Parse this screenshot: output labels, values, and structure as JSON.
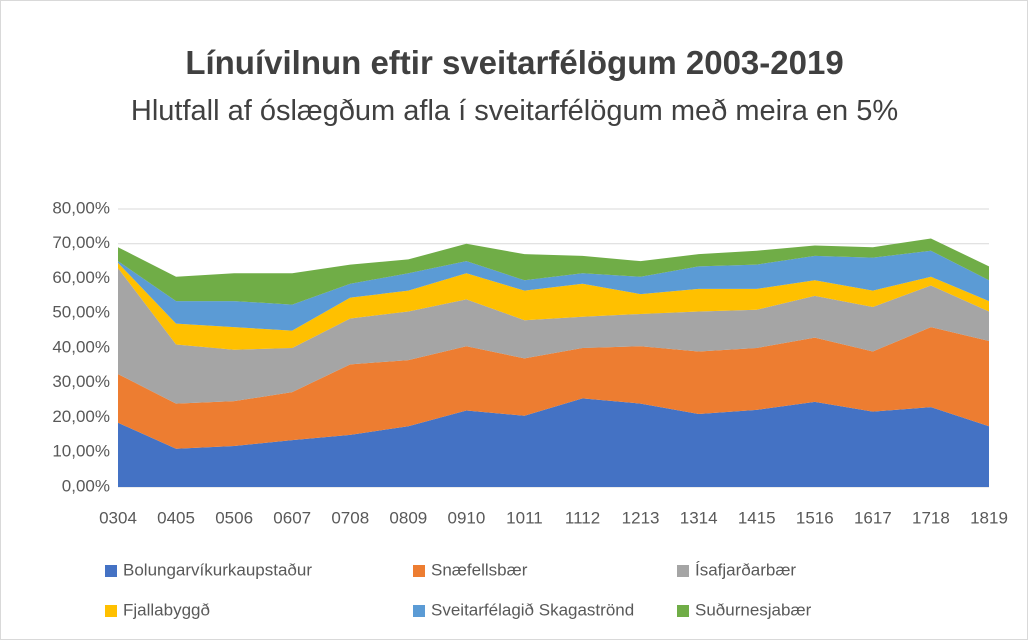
{
  "chart_data": {
    "type": "stacked_area",
    "title": "Línuívilnun eftir sveitarfélögum 2003-2019",
    "subtitle": "Hlutfall af óslægðum afla í sveitarfélögum með meira en 5%",
    "categories": [
      "0304",
      "0405",
      "0506",
      "0607",
      "0708",
      "0809",
      "0910",
      "1011",
      "1112",
      "1213",
      "1314",
      "1415",
      "1516",
      "1617",
      "1718",
      "1819"
    ],
    "series": [
      {
        "name": "Bolungarvíkurkaupstaður",
        "color": "#4472c4",
        "values": [
          18.5,
          11,
          11.8,
          13.5,
          15,
          17.5,
          22,
          20.5,
          25.5,
          24,
          21,
          22.2,
          24.5,
          21.7,
          23,
          17.5
        ]
      },
      {
        "name": "Snæfellsbær",
        "color": "#ed7d31",
        "values": [
          14,
          13,
          12.9,
          13.8,
          20.3,
          19,
          18.5,
          16.5,
          14.5,
          16.5,
          18,
          17.8,
          18.5,
          17.3,
          23,
          24.5
        ]
      },
      {
        "name": "Ísafjarðarbær",
        "color": "#a5a5a5",
        "values": [
          30.5,
          17,
          14.8,
          12.7,
          13.2,
          14,
          13.5,
          11,
          9,
          9.3,
          11.5,
          11,
          12,
          12.8,
          12,
          8.5
        ]
      },
      {
        "name": "Fjallabyggð",
        "color": "#ffc000",
        "values": [
          1.5,
          6,
          6.5,
          5,
          6,
          6,
          7.5,
          8.5,
          9.5,
          5.7,
          6.5,
          6,
          4.5,
          4.7,
          2.5,
          3
        ]
      },
      {
        "name": "Sveitarfélagið Skagaströnd",
        "color": "#5b9bd5",
        "values": [
          0.5,
          6.5,
          7.5,
          7.5,
          4,
          5,
          3.5,
          3,
          3,
          5,
          6.5,
          7,
          7,
          9.5,
          7.5,
          6
        ]
      },
      {
        "name": "Suðurnesjabær",
        "color": "#70ad47",
        "values": [
          4,
          7,
          8,
          9,
          5.5,
          4,
          5,
          7.5,
          5,
          4.5,
          3.5,
          4,
          3,
          3,
          3.5,
          4
        ]
      }
    ],
    "ylim": [
      0,
      80
    ],
    "yticks": [
      {
        "value": 0,
        "label": "0,00%"
      },
      {
        "value": 10,
        "label": "10,00%"
      },
      {
        "value": 20,
        "label": "20,00%"
      },
      {
        "value": 30,
        "label": "30,00%"
      },
      {
        "value": 40,
        "label": "40,00%"
      },
      {
        "value": 50,
        "label": "50,00%"
      },
      {
        "value": 60,
        "label": "60,00%"
      },
      {
        "value": 70,
        "label": "70,00%"
      },
      {
        "value": 80,
        "label": "80,00%"
      }
    ],
    "grid": true
  }
}
